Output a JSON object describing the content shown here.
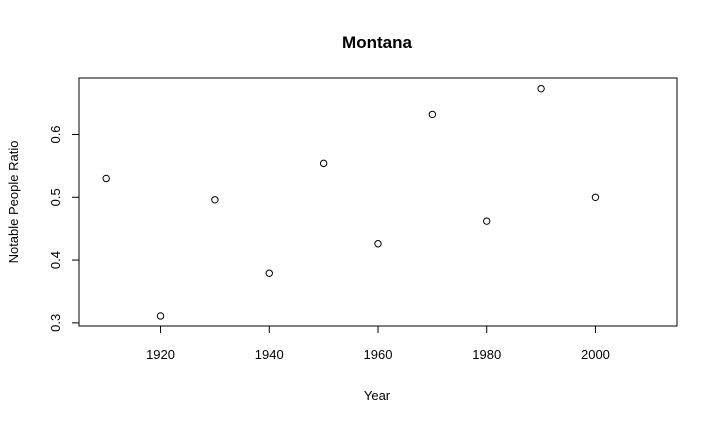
{
  "chart_data": {
    "type": "scatter",
    "title": "Montana",
    "xlabel": "Year",
    "ylabel": "Notable People Ratio",
    "xlim": [
      1905,
      2015
    ],
    "ylim": [
      0.295,
      0.69
    ],
    "x_ticks": [
      1920,
      1940,
      1960,
      1980,
      2000
    ],
    "y_ticks": [
      0.3,
      0.4,
      0.5,
      0.6
    ],
    "x_tick_labels": [
      "1920",
      "1940",
      "1960",
      "1980",
      "2000"
    ],
    "y_tick_labels": [
      "0.3",
      "0.4",
      "0.5",
      "0.6"
    ],
    "grid": false,
    "marker": "open-circle",
    "x": [
      1910,
      1920,
      1930,
      1940,
      1950,
      1960,
      1970,
      1980,
      1990,
      2000
    ],
    "y": [
      0.53,
      0.311,
      0.496,
      0.379,
      0.554,
      0.426,
      0.632,
      0.462,
      0.673,
      0.5
    ]
  }
}
